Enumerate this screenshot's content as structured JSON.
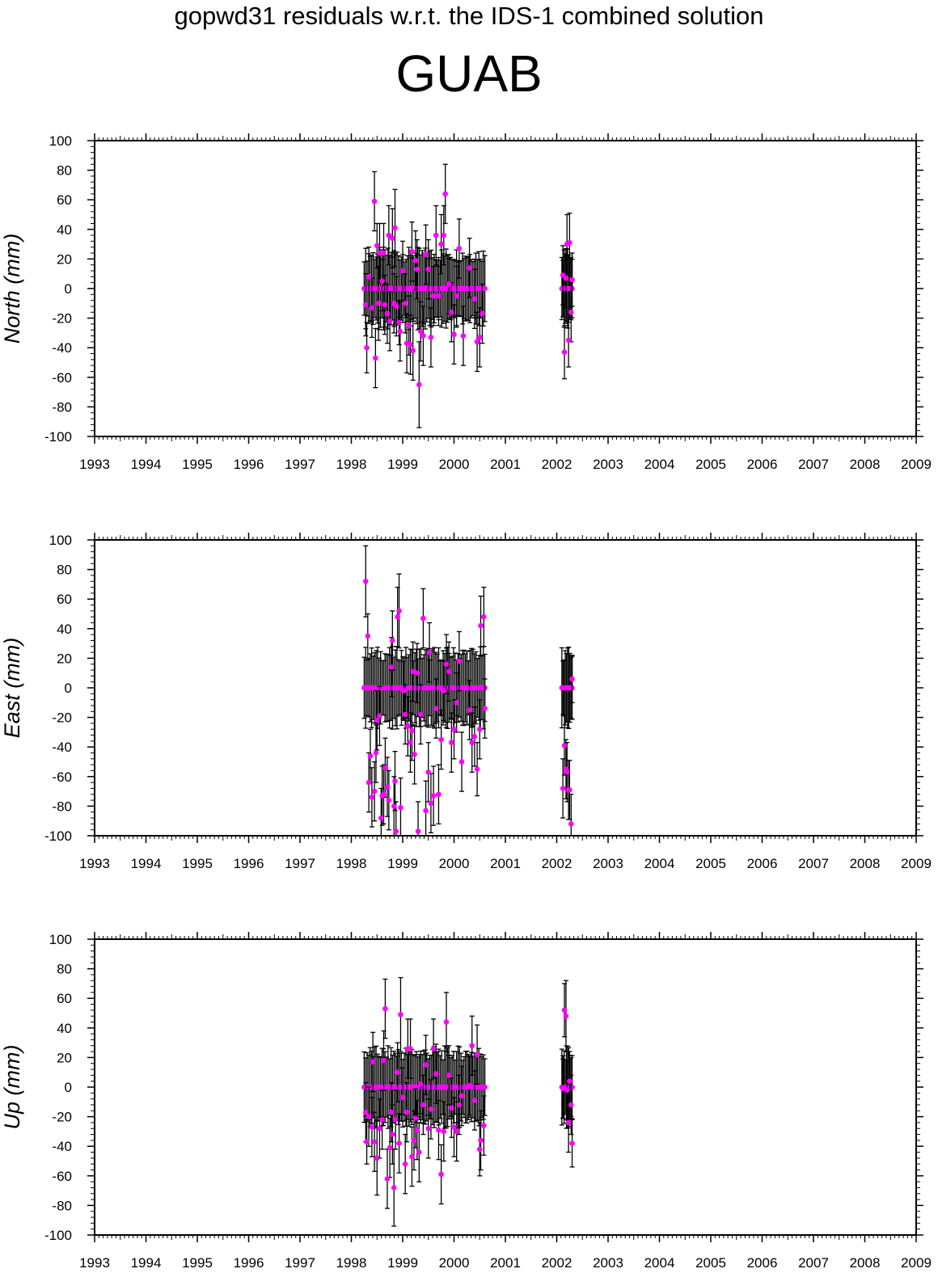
{
  "suptitle": "gopwd31 residuals w.r.t. the IDS-1 combined solution",
  "station": "GUAB",
  "colors": {
    "marker": "#ff00ff",
    "errorbar": "#000000",
    "frame": "#000000"
  },
  "chart_data": [
    {
      "type": "scatter",
      "title": "",
      "xlabel": "",
      "ylabel": "North (mm)",
      "xlim": [
        1993,
        2009
      ],
      "ylim": [
        -100,
        100
      ],
      "xticks": [
        1993,
        1994,
        1995,
        1996,
        1997,
        1998,
        1999,
        2000,
        2001,
        2002,
        2003,
        2004,
        2005,
        2006,
        2007,
        2008,
        2009
      ],
      "yticks": [
        -100,
        -80,
        -60,
        -40,
        -20,
        0,
        20,
        40,
        60,
        80,
        100
      ],
      "grid": false,
      "zero_series": {
        "x_start": 1998.25,
        "x_end": 2000.6,
        "count": 82,
        "y": 0,
        "note": "zero-valued points"
      },
      "zero_series_2002": {
        "x_start": 2002.1,
        "x_end": 2002.3,
        "count": 10,
        "y": 0
      },
      "points": [
        [
          1998.28,
          -11,
          21
        ],
        [
          1998.3,
          -40,
          17
        ],
        [
          1998.34,
          8,
          20
        ],
        [
          1998.4,
          -13,
          20
        ],
        [
          1998.45,
          59,
          20
        ],
        [
          1998.47,
          -47,
          20
        ],
        [
          1998.5,
          29,
          15
        ],
        [
          1998.53,
          -10,
          25
        ],
        [
          1998.55,
          24,
          20
        ],
        [
          1998.6,
          5,
          20
        ],
        [
          1998.63,
          24,
          20
        ],
        [
          1998.65,
          -11,
          20
        ],
        [
          1998.7,
          -17,
          20
        ],
        [
          1998.73,
          36,
          20
        ],
        [
          1998.75,
          -22,
          20
        ],
        [
          1998.8,
          34,
          20
        ],
        [
          1998.83,
          -10,
          20
        ],
        [
          1998.85,
          41,
          26
        ],
        [
          1998.88,
          -12,
          20
        ],
        [
          1998.93,
          -23,
          15
        ],
        [
          1998.95,
          -29,
          20
        ],
        [
          1999.0,
          12,
          20
        ],
        [
          1999.05,
          -10,
          20
        ],
        [
          1999.08,
          -37,
          20
        ],
        [
          1999.12,
          -25,
          20
        ],
        [
          1999.15,
          -38,
          20
        ],
        [
          1999.18,
          25,
          20
        ],
        [
          1999.2,
          -42,
          20
        ],
        [
          1999.25,
          19,
          20
        ],
        [
          1999.28,
          13,
          20
        ],
        [
          1999.32,
          -65,
          29
        ],
        [
          1999.35,
          -29,
          20
        ],
        [
          1999.4,
          -32,
          20
        ],
        [
          1999.45,
          23,
          20
        ],
        [
          1999.5,
          13,
          20
        ],
        [
          1999.55,
          -33,
          20
        ],
        [
          1999.6,
          -5,
          20
        ],
        [
          1999.65,
          36,
          20
        ],
        [
          1999.7,
          -5,
          20
        ],
        [
          1999.75,
          30,
          20
        ],
        [
          1999.8,
          36,
          20
        ],
        [
          1999.83,
          64,
          20
        ],
        [
          1999.9,
          3,
          20
        ],
        [
          1999.95,
          -16,
          20
        ],
        [
          2000.0,
          -31,
          20
        ],
        [
          2000.05,
          -5,
          20
        ],
        [
          2000.1,
          27,
          20
        ],
        [
          2000.18,
          -32,
          20
        ],
        [
          2000.3,
          14,
          20
        ],
        [
          2000.4,
          -7,
          20
        ],
        [
          2000.45,
          -36,
          20
        ],
        [
          2000.5,
          -33,
          20
        ],
        [
          2000.55,
          -17,
          20
        ],
        [
          2002.12,
          9,
          20
        ],
        [
          2002.15,
          -43,
          18
        ],
        [
          2002.18,
          7,
          20
        ],
        [
          2002.2,
          30,
          20
        ],
        [
          2002.23,
          -35,
          18
        ],
        [
          2002.25,
          31,
          20
        ],
        [
          2002.28,
          -16,
          20
        ],
        [
          2002.3,
          6,
          18
        ]
      ]
    },
    {
      "type": "scatter",
      "title": "",
      "xlabel": "",
      "ylabel": "East (mm)",
      "xlim": [
        1993,
        2009
      ],
      "ylim": [
        -100,
        100
      ],
      "xticks": [
        1993,
        1994,
        1995,
        1996,
        1997,
        1998,
        1999,
        2000,
        2001,
        2002,
        2003,
        2004,
        2005,
        2006,
        2007,
        2008,
        2009
      ],
      "yticks": [
        -100,
        -80,
        -60,
        -40,
        -20,
        0,
        20,
        40,
        60,
        80,
        100
      ],
      "grid": false,
      "zero_series": {
        "x_start": 1998.25,
        "x_end": 2000.6,
        "count": 82,
        "y": 0
      },
      "zero_series_2002": {
        "x_start": 2002.1,
        "x_end": 2002.3,
        "count": 10,
        "y": 0
      },
      "points": [
        [
          1998.28,
          72,
          24
        ],
        [
          1998.32,
          35,
          15
        ],
        [
          1998.34,
          -64,
          20
        ],
        [
          1998.37,
          -46,
          18
        ],
        [
          1998.4,
          -74,
          20
        ],
        [
          1998.45,
          -70,
          20
        ],
        [
          1998.48,
          -44,
          20
        ],
        [
          1998.5,
          -22,
          20
        ],
        [
          1998.55,
          -19,
          20
        ],
        [
          1998.58,
          -88,
          20
        ],
        [
          1998.6,
          -73,
          20
        ],
        [
          1998.63,
          -72,
          20
        ],
        [
          1998.66,
          -54,
          20
        ],
        [
          1998.7,
          -67,
          20
        ],
        [
          1998.73,
          -76,
          20
        ],
        [
          1998.78,
          14,
          20
        ],
        [
          1998.8,
          32,
          20
        ],
        [
          1998.83,
          -80,
          20
        ],
        [
          1998.85,
          -63,
          20
        ],
        [
          1998.87,
          -97,
          20
        ],
        [
          1998.9,
          48,
          20
        ],
        [
          1998.93,
          52,
          25
        ],
        [
          1998.96,
          -81,
          20
        ],
        [
          1999.02,
          -2,
          20
        ],
        [
          1999.05,
          -18,
          20
        ],
        [
          1999.1,
          -26,
          20
        ],
        [
          1999.15,
          -37,
          20
        ],
        [
          1999.18,
          -29,
          20
        ],
        [
          1999.2,
          11,
          20
        ],
        [
          1999.23,
          -45,
          20
        ],
        [
          1999.28,
          10,
          20
        ],
        [
          1999.3,
          -97,
          20
        ],
        [
          1999.35,
          -18,
          20
        ],
        [
          1999.4,
          47,
          20
        ],
        [
          1999.45,
          -83,
          20
        ],
        [
          1999.5,
          -57,
          20
        ],
        [
          1999.52,
          24,
          20
        ],
        [
          1999.55,
          -78,
          20
        ],
        [
          1999.6,
          -73,
          20
        ],
        [
          1999.65,
          -14,
          20
        ],
        [
          1999.7,
          -72,
          20
        ],
        [
          1999.75,
          -35,
          20
        ],
        [
          1999.8,
          -2,
          20
        ],
        [
          1999.85,
          16,
          20
        ],
        [
          1999.9,
          11,
          20
        ],
        [
          1999.95,
          -37,
          20
        ],
        [
          2000.0,
          -28,
          20
        ],
        [
          2000.05,
          -10,
          20
        ],
        [
          2000.1,
          18,
          20
        ],
        [
          2000.15,
          -50,
          20
        ],
        [
          2000.3,
          -15,
          20
        ],
        [
          2000.35,
          -37,
          20
        ],
        [
          2000.4,
          -33,
          20
        ],
        [
          2000.45,
          -55,
          18
        ],
        [
          2000.5,
          -28,
          20
        ],
        [
          2000.52,
          42,
          20
        ],
        [
          2000.58,
          48,
          20
        ],
        [
          2000.6,
          -14,
          20
        ],
        [
          2002.12,
          -68,
          20
        ],
        [
          2002.15,
          -39,
          20
        ],
        [
          2002.18,
          -55,
          20
        ],
        [
          2002.2,
          -57,
          20
        ],
        [
          2002.23,
          -69,
          20
        ],
        [
          2002.25,
          -69,
          20
        ],
        [
          2002.28,
          -92,
          20
        ],
        [
          2002.3,
          6,
          16
        ]
      ]
    },
    {
      "type": "scatter",
      "title": "",
      "xlabel": "",
      "ylabel": "Up (mm)",
      "xlim": [
        1993,
        2009
      ],
      "ylim": [
        -100,
        100
      ],
      "xticks": [
        1993,
        1994,
        1995,
        1996,
        1997,
        1998,
        1999,
        2000,
        2001,
        2002,
        2003,
        2004,
        2005,
        2006,
        2007,
        2008,
        2009
      ],
      "yticks": [
        -100,
        -80,
        -60,
        -40,
        -20,
        0,
        20,
        40,
        60,
        80,
        100
      ],
      "grid": false,
      "zero_series": {
        "x_start": 1998.25,
        "x_end": 2000.6,
        "count": 82,
        "y": 0
      },
      "zero_series_2002": {
        "x_start": 2002.1,
        "x_end": 2002.3,
        "count": 10,
        "y": 0
      },
      "points": [
        [
          1998.28,
          -17,
          20
        ],
        [
          1998.3,
          -37,
          15
        ],
        [
          1998.34,
          -20,
          20
        ],
        [
          1998.4,
          -27,
          20
        ],
        [
          1998.42,
          17,
          20
        ],
        [
          1998.45,
          -37,
          20
        ],
        [
          1998.5,
          -48,
          25
        ],
        [
          1998.55,
          -28,
          20
        ],
        [
          1998.6,
          -22,
          20
        ],
        [
          1998.63,
          18,
          20
        ],
        [
          1998.66,
          53,
          20
        ],
        [
          1998.7,
          -62,
          20
        ],
        [
          1998.75,
          -41,
          20
        ],
        [
          1998.78,
          -17,
          20
        ],
        [
          1998.8,
          -32,
          20
        ],
        [
          1998.83,
          -68,
          26
        ],
        [
          1998.86,
          -22,
          20
        ],
        [
          1998.9,
          10,
          20
        ],
        [
          1998.93,
          -38,
          20
        ],
        [
          1998.96,
          49,
          25
        ],
        [
          1999.0,
          -7,
          20
        ],
        [
          1999.05,
          -52,
          20
        ],
        [
          1999.08,
          -17,
          20
        ],
        [
          1999.1,
          26,
          20
        ],
        [
          1999.15,
          26,
          20
        ],
        [
          1999.18,
          -47,
          20
        ],
        [
          1999.22,
          -36,
          20
        ],
        [
          1999.25,
          -21,
          20
        ],
        [
          1999.28,
          -29,
          20
        ],
        [
          1999.32,
          -44,
          20
        ],
        [
          1999.35,
          2,
          20
        ],
        [
          1999.4,
          -12,
          20
        ],
        [
          1999.45,
          15,
          20
        ],
        [
          1999.5,
          -28,
          20
        ],
        [
          1999.55,
          -15,
          20
        ],
        [
          1999.6,
          26,
          20
        ],
        [
          1999.65,
          9,
          20
        ],
        [
          1999.7,
          -29,
          20
        ],
        [
          1999.75,
          -59,
          20
        ],
        [
          1999.8,
          -30,
          20
        ],
        [
          1999.85,
          44,
          20
        ],
        [
          1999.9,
          8,
          20
        ],
        [
          1999.95,
          -14,
          20
        ],
        [
          2000.0,
          -27,
          20
        ],
        [
          2000.05,
          -30,
          20
        ],
        [
          2000.1,
          -12,
          20
        ],
        [
          2000.15,
          -6,
          20
        ],
        [
          2000.3,
          1,
          20
        ],
        [
          2000.35,
          28,
          20
        ],
        [
          2000.4,
          -9,
          20
        ],
        [
          2000.45,
          22,
          20
        ],
        [
          2000.5,
          -42,
          18
        ],
        [
          2000.52,
          -36,
          20
        ],
        [
          2000.58,
          -26,
          20
        ],
        [
          2002.12,
          -1,
          20
        ],
        [
          2002.15,
          52,
          18
        ],
        [
          2002.18,
          48,
          24
        ],
        [
          2002.2,
          -2,
          20
        ],
        [
          2002.23,
          -24,
          20
        ],
        [
          2002.25,
          4,
          20
        ],
        [
          2002.28,
          -12,
          20
        ],
        [
          2002.3,
          -38,
          16
        ]
      ]
    }
  ]
}
